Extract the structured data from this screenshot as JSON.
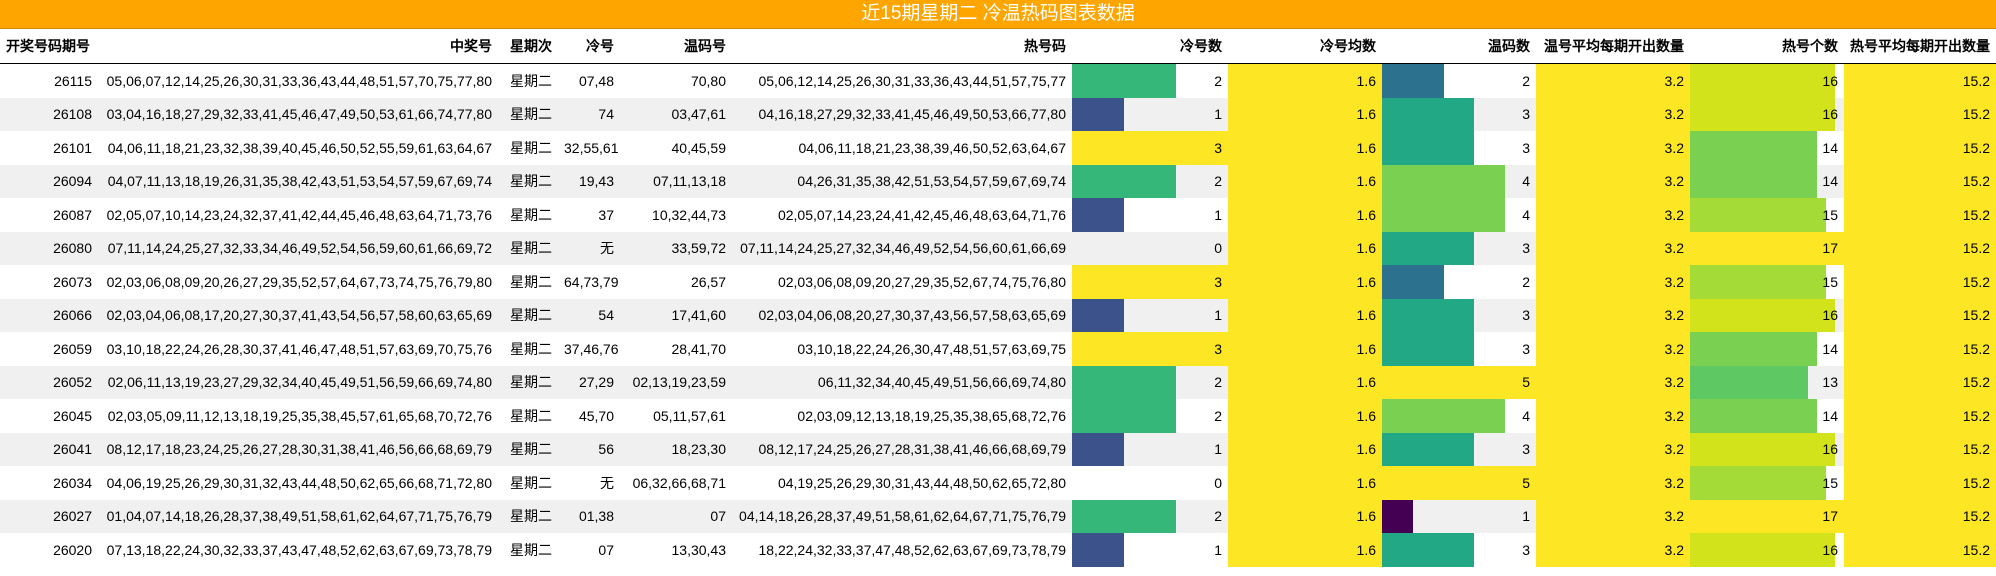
{
  "title": "近15期星期二 冷温热码图表数据",
  "headers": [
    "开奖号码期号",
    "中奖号",
    "星期次",
    "冷号",
    "温码号",
    "热号码",
    "冷号数",
    "冷号均数",
    "温码数",
    "温号平均每期开出数量",
    "热号个数",
    "热号平均每期开出数量"
  ],
  "colors": {
    "header_bg": "#FFA500",
    "row_alt": "#f0f0f0",
    "avg_fill": "#FDE725",
    "viridis_0": "#440154",
    "viridis_1": "#3B528B",
    "viridis_2": "#2C728E",
    "viridis_3": "#21918C",
    "viridis_4": "#22A884",
    "viridis_5": "#35B779",
    "viridis_6": "#5EC962",
    "viridis_7": "#7AD151",
    "viridis_8": "#A5DB36",
    "viridis_9": "#D2E21B",
    "viridis_10": "#FDE725"
  },
  "rows": [
    {
      "period": "26115",
      "winning": "05,06,07,12,14,25,26,30,31,33,36,43,44,48,51,57,70,75,77,80",
      "weekday": "星期二",
      "cold": "07,48",
      "warm": "70,80",
      "hot": "05,06,12,14,25,26,30,31,33,36,43,44,51,57,75,77",
      "cold_count": "2",
      "cold_avg": "1.6",
      "warm_count": "2",
      "warm_avg": "3.2",
      "hot_count": "16",
      "hot_avg": "15.2"
    },
    {
      "period": "26108",
      "winning": "03,04,16,18,27,29,32,33,41,45,46,47,49,50,53,61,66,74,77,80",
      "weekday": "星期二",
      "cold": "74",
      "warm": "03,47,61",
      "hot": "04,16,18,27,29,32,33,41,45,46,49,50,53,66,77,80",
      "cold_count": "1",
      "cold_avg": "1.6",
      "warm_count": "3",
      "warm_avg": "3.2",
      "hot_count": "16",
      "hot_avg": "15.2"
    },
    {
      "period": "26101",
      "winning": "04,06,11,18,21,23,32,38,39,40,45,46,50,52,55,59,61,63,64,67",
      "weekday": "星期二",
      "cold": "32,55,61",
      "warm": "40,45,59",
      "hot": "04,06,11,18,21,23,38,39,46,50,52,63,64,67",
      "cold_count": "3",
      "cold_avg": "1.6",
      "warm_count": "3",
      "warm_avg": "3.2",
      "hot_count": "14",
      "hot_avg": "15.2"
    },
    {
      "period": "26094",
      "winning": "04,07,11,13,18,19,26,31,35,38,42,43,51,53,54,57,59,67,69,74",
      "weekday": "星期二",
      "cold": "19,43",
      "warm": "07,11,13,18",
      "hot": "04,26,31,35,38,42,51,53,54,57,59,67,69,74",
      "cold_count": "2",
      "cold_avg": "1.6",
      "warm_count": "4",
      "warm_avg": "3.2",
      "hot_count": "14",
      "hot_avg": "15.2"
    },
    {
      "period": "26087",
      "winning": "02,05,07,10,14,23,24,32,37,41,42,44,45,46,48,63,64,71,73,76",
      "weekday": "星期二",
      "cold": "37",
      "warm": "10,32,44,73",
      "hot": "02,05,07,14,23,24,41,42,45,46,48,63,64,71,76",
      "cold_count": "1",
      "cold_avg": "1.6",
      "warm_count": "4",
      "warm_avg": "3.2",
      "hot_count": "15",
      "hot_avg": "15.2"
    },
    {
      "period": "26080",
      "winning": "07,11,14,24,25,27,32,33,34,46,49,52,54,56,59,60,61,66,69,72",
      "weekday": "星期二",
      "cold": "无",
      "warm": "33,59,72",
      "hot": "07,11,14,24,25,27,32,34,46,49,52,54,56,60,61,66,69",
      "cold_count": "0",
      "cold_avg": "1.6",
      "warm_count": "3",
      "warm_avg": "3.2",
      "hot_count": "17",
      "hot_avg": "15.2"
    },
    {
      "period": "26073",
      "winning": "02,03,06,08,09,20,26,27,29,35,52,57,64,67,73,74,75,76,79,80",
      "weekday": "星期二",
      "cold": "64,73,79",
      "warm": "26,57",
      "hot": "02,03,06,08,09,20,27,29,35,52,67,74,75,76,80",
      "cold_count": "3",
      "cold_avg": "1.6",
      "warm_count": "2",
      "warm_avg": "3.2",
      "hot_count": "15",
      "hot_avg": "15.2"
    },
    {
      "period": "26066",
      "winning": "02,03,04,06,08,17,20,27,30,37,41,43,54,56,57,58,60,63,65,69",
      "weekday": "星期二",
      "cold": "54",
      "warm": "17,41,60",
      "hot": "02,03,04,06,08,20,27,30,37,43,56,57,58,63,65,69",
      "cold_count": "1",
      "cold_avg": "1.6",
      "warm_count": "3",
      "warm_avg": "3.2",
      "hot_count": "16",
      "hot_avg": "15.2"
    },
    {
      "period": "26059",
      "winning": "03,10,18,22,24,26,28,30,37,41,46,47,48,51,57,63,69,70,75,76",
      "weekday": "星期二",
      "cold": "37,46,76",
      "warm": "28,41,70",
      "hot": "03,10,18,22,24,26,30,47,48,51,57,63,69,75",
      "cold_count": "3",
      "cold_avg": "1.6",
      "warm_count": "3",
      "warm_avg": "3.2",
      "hot_count": "14",
      "hot_avg": "15.2"
    },
    {
      "period": "26052",
      "winning": "02,06,11,13,19,23,27,29,32,34,40,45,49,51,56,59,66,69,74,80",
      "weekday": "星期二",
      "cold": "27,29",
      "warm": "02,13,19,23,59",
      "hot": "06,11,32,34,40,45,49,51,56,66,69,74,80",
      "cold_count": "2",
      "cold_avg": "1.6",
      "warm_count": "5",
      "warm_avg": "3.2",
      "hot_count": "13",
      "hot_avg": "15.2"
    },
    {
      "period": "26045",
      "winning": "02,03,05,09,11,12,13,18,19,25,35,38,45,57,61,65,68,70,72,76",
      "weekday": "星期二",
      "cold": "45,70",
      "warm": "05,11,57,61",
      "hot": "02,03,09,12,13,18,19,25,35,38,65,68,72,76",
      "cold_count": "2",
      "cold_avg": "1.6",
      "warm_count": "4",
      "warm_avg": "3.2",
      "hot_count": "14",
      "hot_avg": "15.2"
    },
    {
      "period": "26041",
      "winning": "08,12,17,18,23,24,25,26,27,28,30,31,38,41,46,56,66,68,69,79",
      "weekday": "星期二",
      "cold": "56",
      "warm": "18,23,30",
      "hot": "08,12,17,24,25,26,27,28,31,38,41,46,66,68,69,79",
      "cold_count": "1",
      "cold_avg": "1.6",
      "warm_count": "3",
      "warm_avg": "3.2",
      "hot_count": "16",
      "hot_avg": "15.2"
    },
    {
      "period": "26034",
      "winning": "04,06,19,25,26,29,30,31,32,43,44,48,50,62,65,66,68,71,72,80",
      "weekday": "星期二",
      "cold": "无",
      "warm": "06,32,66,68,71",
      "hot": "04,19,25,26,29,30,31,43,44,48,50,62,65,72,80",
      "cold_count": "0",
      "cold_avg": "1.6",
      "warm_count": "5",
      "warm_avg": "3.2",
      "hot_count": "15",
      "hot_avg": "15.2"
    },
    {
      "period": "26027",
      "winning": "01,04,07,14,18,26,28,37,38,49,51,58,61,62,64,67,71,75,76,79",
      "weekday": "星期二",
      "cold": "01,38",
      "warm": "07",
      "hot": "04,14,18,26,28,37,49,51,58,61,62,64,67,71,75,76,79",
      "cold_count": "2",
      "cold_avg": "1.6",
      "warm_count": "1",
      "warm_avg": "3.2",
      "hot_count": "17",
      "hot_avg": "15.2"
    },
    {
      "period": "26020",
      "winning": "07,13,18,22,24,30,32,33,37,43,47,48,52,62,63,67,69,73,78,79",
      "weekday": "星期二",
      "cold": "07",
      "warm": "13,30,43",
      "hot": "18,22,24,32,33,37,47,48,52,62,63,67,69,73,78,79",
      "cold_count": "1",
      "cold_avg": "1.6",
      "warm_count": "3",
      "warm_avg": "3.2",
      "hot_count": "16",
      "hot_avg": "15.2"
    }
  ]
}
